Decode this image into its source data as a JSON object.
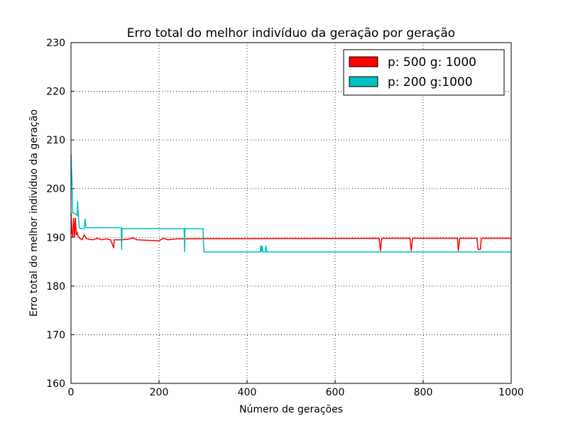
{
  "chart_data": {
    "type": "line",
    "title": "Erro total do melhor indivíduo da geração por geração",
    "xlabel": "Número de gerações",
    "ylabel": "Erro total do melhor indivíduo da geração",
    "xlim": [
      0,
      1000
    ],
    "xticks": [
      0,
      200,
      400,
      600,
      800,
      1000
    ],
    "ylim": [
      160,
      230
    ],
    "yticks": [
      160,
      170,
      180,
      190,
      200,
      210,
      220,
      230
    ],
    "grid": true,
    "legend": "upper right",
    "series": [
      {
        "name": "p: 500 g: 1000",
        "color": "#ff0000",
        "x": [
          0,
          2,
          4,
          6,
          8,
          10,
          12,
          14,
          16,
          18,
          20,
          25,
          30,
          35,
          40,
          50,
          60,
          70,
          80,
          90,
          97,
          98,
          110,
          130,
          140,
          150,
          170,
          200,
          210,
          220,
          240,
          700,
          703,
          706,
          770,
          773,
          776,
          878,
          880,
          883,
          922,
          925,
          930,
          932,
          1000
        ],
        "values": [
          195,
          191,
          190,
          194,
          190,
          194,
          190.5,
          191,
          190.3,
          190,
          189.8,
          189.5,
          190.5,
          189.8,
          189.6,
          189.5,
          189.8,
          189.5,
          189.7,
          189.5,
          187.8,
          189.5,
          189.5,
          189.6,
          189.9,
          189.5,
          189.4,
          189.3,
          189.8,
          189.5,
          189.7,
          189.8,
          187.2,
          189.8,
          189.8,
          187.2,
          189.8,
          189.8,
          187.2,
          189.8,
          189.8,
          187.5,
          187.5,
          189.8,
          189.8
        ]
      },
      {
        "name": "p: 200 g:1000",
        "color": "#00bfbf",
        "x": [
          0,
          2,
          4,
          6,
          10,
          14,
          15,
          17,
          19,
          22,
          30,
          32,
          34,
          40,
          114,
          115,
          116,
          120,
          257,
          258,
          259,
          300,
          301,
          302,
          304,
          430,
          431,
          433,
          434,
          436,
          442,
          443,
          445,
          500,
          1000
        ],
        "values": [
          207,
          202,
          195,
          195,
          194.8,
          194.5,
          197.5,
          194,
          192,
          191.8,
          191.8,
          193.8,
          192,
          192,
          192,
          187.5,
          191.8,
          191.8,
          191.8,
          187,
          191.8,
          191.8,
          188.5,
          187,
          187,
          187,
          188.3,
          187,
          188.3,
          187,
          187,
          188.3,
          187,
          187,
          187
        ]
      }
    ]
  }
}
